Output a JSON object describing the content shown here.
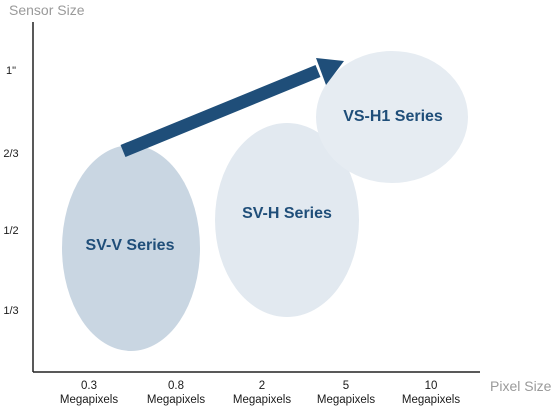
{
  "axes": {
    "y_title": "Sensor Size",
    "x_title": "Pixel Size",
    "y_ticks": [
      "1\"",
      "2/3",
      "1/2",
      "1/3"
    ],
    "x_ticks": [
      {
        "value": "0.3",
        "unit": "Megapixels"
      },
      {
        "value": "0.8",
        "unit": "Megapixels"
      },
      {
        "value": "2",
        "unit": "Megapixels"
      },
      {
        "value": "5",
        "unit": "Megapixels"
      },
      {
        "value": "10",
        "unit": "Megapixels"
      }
    ]
  },
  "series": [
    {
      "label": "SV-V Series",
      "fill": "#c9d6e2"
    },
    {
      "label": "SV-H Series",
      "fill": "#e2e9f0"
    },
    {
      "label": "VS-H1 Series",
      "fill": "#e6ecf2"
    }
  ],
  "colors": {
    "label_text": "#1f4e79",
    "arrow": "#1f4e79",
    "axis_line": "#222222",
    "axis_title": "#9a9a9a"
  }
}
